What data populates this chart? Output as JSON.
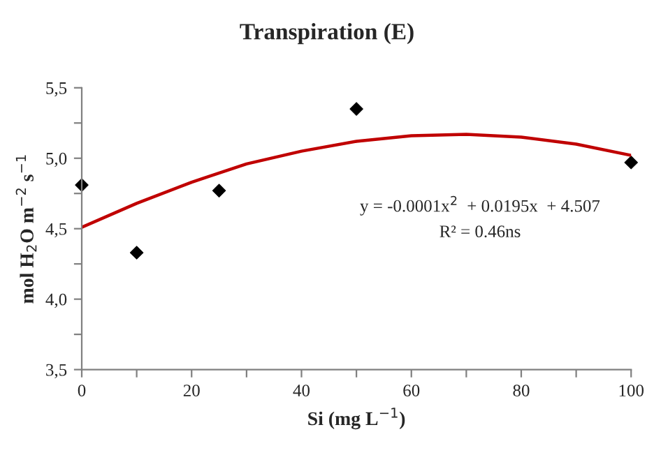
{
  "chart_data": {
    "type": "scatter",
    "title": "Transpiration (E)",
    "xlabel": "Si (mg L$^{−1}$)",
    "ylabel": "mol H$_{2}$O m$^{−2}$ s$^{−1}$",
    "x": [
      0,
      10,
      25,
      50,
      100
    ],
    "series": [
      {
        "color": "#000000",
        "marker": "diamond",
        "values": [
          4.81,
          4.33,
          4.77,
          5.35,
          4.97
        ]
      },
      {
        "type": "line",
        "color": "#c00000",
        "marker": "none",
        "line_style": "solid",
        "x": [
          0,
          10,
          20,
          30,
          40,
          50,
          60,
          70,
          80,
          90,
          100
        ],
        "values": [
          4.51,
          4.68,
          4.83,
          4.96,
          5.05,
          5.12,
          5.16,
          5.17,
          5.15,
          5.1,
          5.02
        ]
      }
    ],
    "xlim": [
      0,
      100
    ],
    "ylim": [
      3.5,
      5.5
    ],
    "xticks": [
      0,
      {
        "value": 10,
        "label": null
      },
      20,
      {
        "value": 30,
        "label": null
      },
      40,
      {
        "value": 50,
        "label": null
      },
      60,
      {
        "value": 70,
        "label": null
      },
      80,
      {
        "value": 90,
        "label": null
      },
      100
    ],
    "yticks": [
      {
        "value": 3.5,
        "label": "3,5"
      },
      {
        "value": 3.75,
        "label": null
      },
      {
        "value": 4.0,
        "label": "4,0"
      },
      {
        "value": 4.25,
        "label": null
      },
      {
        "value": 4.5,
        "label": "4,5"
      },
      {
        "value": 4.75,
        "label": null
      },
      {
        "value": 5.0,
        "label": "5,0"
      },
      {
        "value": 5.25,
        "label": null
      },
      {
        "value": 5.5,
        "label": "5,5"
      }
    ],
    "annotations": [
      {
        "text": "y = -0.0001x$^{2}$  + 0.0195x  + 4.507"
      },
      {
        "text": "R² = 0.46ns"
      }
    ],
    "grid": false,
    "legend": false
  }
}
